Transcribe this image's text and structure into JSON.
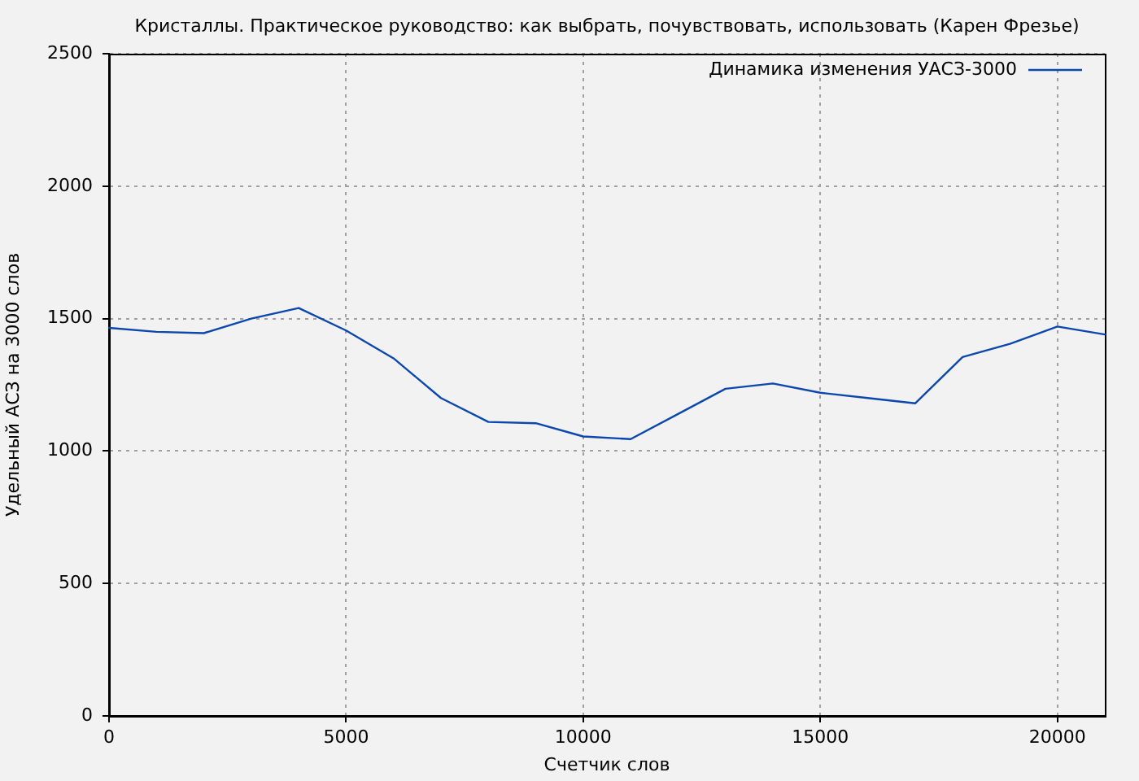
{
  "chart_data": {
    "type": "line",
    "title": "Кристаллы. Практическое руководство: как выбрать, почувствовать, использовать (Карен Фрезье)",
    "xlabel": "Счетчик слов",
    "ylabel": "Удельный АСЗ на 3000 слов",
    "x": [
      0,
      1000,
      2000,
      3000,
      4000,
      5000,
      6000,
      7000,
      8000,
      9000,
      10000,
      11000,
      12000,
      13000,
      14000,
      15000,
      16000,
      17000,
      18000,
      19000,
      20000,
      21000
    ],
    "series": [
      {
        "name": "Динамика изменения УАСЗ-3000",
        "color": "#0b47ad",
        "values": [
          1465,
          1450,
          1445,
          1500,
          1540,
          1455,
          1350,
          1200,
          1110,
          1105,
          1055,
          1045,
          1140,
          1235,
          1255,
          1220,
          1200,
          1180,
          1355,
          1405,
          1470,
          1440
        ]
      }
    ],
    "xlim": [
      0,
      21000
    ],
    "xticks": [
      0,
      5000,
      10000,
      15000,
      20000
    ],
    "ylim": [
      0,
      2500
    ],
    "yticks": [
      0,
      500,
      1000,
      1500,
      2000,
      2500
    ],
    "grid": true,
    "legend": "top right"
  }
}
